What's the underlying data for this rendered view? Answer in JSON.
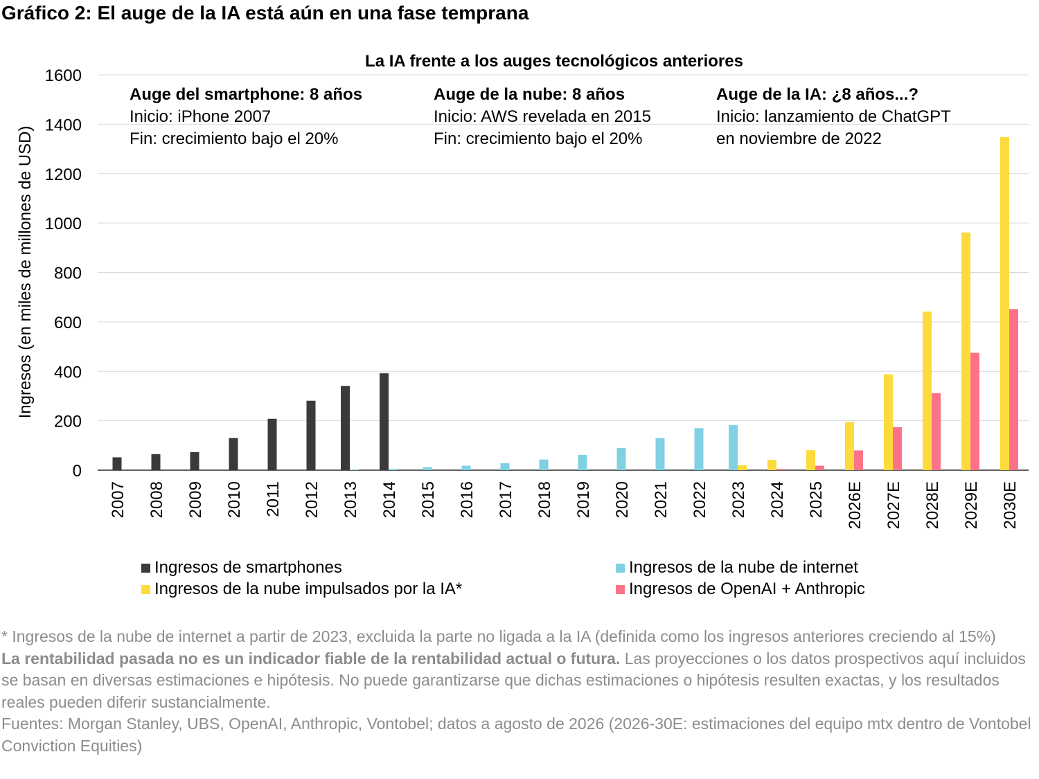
{
  "page": {
    "title": "Gráfico 2: El auge de la IA está aún en una fase temprana"
  },
  "chart_data": {
    "type": "bar",
    "title": "La IA frente a los auges tecnológicos anteriores",
    "ylabel": "Ingresos (en miles de millones de USD)",
    "xlabel": "",
    "ylim": [
      0,
      1600
    ],
    "yticks": [
      "0",
      "200",
      "400",
      "600",
      "800",
      "1000",
      "1200",
      "1400",
      "1600"
    ],
    "grid": true,
    "legend_position": "bottom",
    "categories": [
      "2007",
      "2008",
      "2009",
      "2010",
      "2011",
      "2012",
      "2013",
      "2014",
      "2015",
      "2016",
      "2017",
      "2018",
      "2019",
      "2020",
      "2021",
      "2022",
      "2023",
      "2024",
      "2025",
      "2026E",
      "2027E",
      "2028E",
      "2029E",
      "2030E"
    ],
    "series": [
      {
        "name": "Ingresos de smartphones",
        "color": "#3a3a3a",
        "values": [
          52,
          65,
          73,
          130,
          208,
          281,
          341,
          392,
          null,
          null,
          null,
          null,
          null,
          null,
          null,
          null,
          null,
          null,
          null,
          null,
          null,
          null,
          null,
          null
        ]
      },
      {
        "name": "Ingresos de la nube de internet",
        "color": "#7fd1e3",
        "values": [
          null,
          null,
          null,
          null,
          null,
          null,
          2,
          5,
          12,
          18,
          28,
          43,
          62,
          90,
          130,
          170,
          182,
          null,
          null,
          null,
          null,
          null,
          null,
          null
        ]
      },
      {
        "name": "Ingresos de la nube impulsados por la IA*",
        "color": "#fedb3d",
        "values": [
          null,
          null,
          null,
          null,
          null,
          null,
          null,
          null,
          null,
          null,
          null,
          null,
          null,
          null,
          null,
          null,
          20,
          42,
          81,
          195,
          388,
          642,
          962,
          1348
        ]
      },
      {
        "name": "Ingresos de OpenAI + Anthropic",
        "color": "#fc7389",
        "values": [
          null,
          null,
          null,
          null,
          null,
          null,
          null,
          null,
          null,
          null,
          null,
          null,
          null,
          null,
          null,
          null,
          null,
          5,
          18,
          80,
          174,
          312,
          475,
          652
        ]
      }
    ],
    "annotations": [
      {
        "heading": "Auge del smartphone: 8 años",
        "lines": [
          "Inicio: iPhone 2007",
          "Fin: crecimiento bajo el 20%"
        ]
      },
      {
        "heading": "Auge de la nube: 8 años",
        "lines": [
          "Inicio: AWS revelada en 2015",
          "Fin: crecimiento bajo el 20%"
        ]
      },
      {
        "heading": "Auge de la IA: ¿8 años...?",
        "lines": [
          "Inicio: lanzamiento de ChatGPT",
          "en noviembre de 2022"
        ]
      }
    ]
  },
  "footnotes": {
    "asterisk_note": "* Ingresos de la nube de internet a partir de 2023, excluida la parte no ligada a la IA (definida como los ingresos anteriores creciendo al 15%)",
    "disclaimer_bold": "La rentabilidad pasada no es un indicador fiable de la rentabilidad actual o futura.",
    "disclaimer_rest": " Las proyecciones o los datos prospectivos aquí incluidos se basan en diversas estimaciones e hipótesis. No puede garantizarse que dichas estimaciones o hipótesis resulten exactas, y los resultados reales pueden diferir sustancialmente.",
    "sources": "Fuentes: Morgan Stanley, UBS, OpenAI, Anthropic, Vontobel; datos a agosto de 2026 (2026-30E: estimaciones del equipo mtx dentro de Vontobel Conviction Equities)"
  }
}
